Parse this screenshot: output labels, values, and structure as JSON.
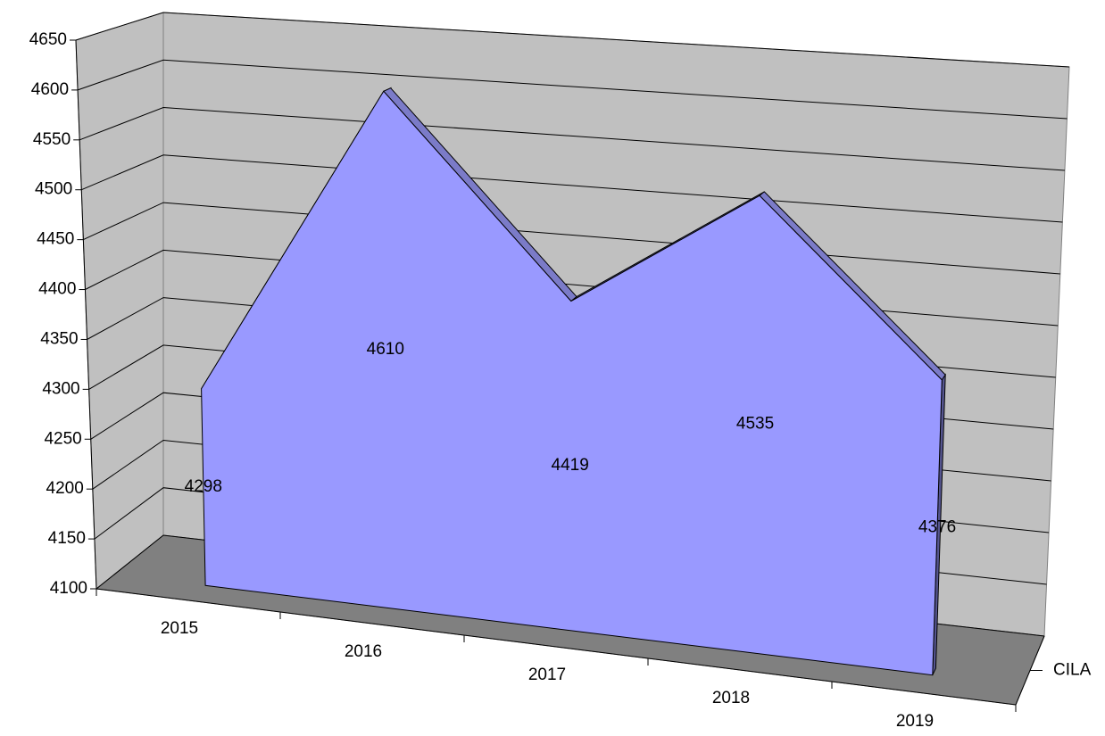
{
  "chart_data": {
    "type": "area3d",
    "categories": [
      "2015",
      "2016",
      "2017",
      "2018",
      "2019"
    ],
    "series": [
      {
        "name": "CILA",
        "color": "#9999ff",
        "values": [
          4298,
          4610,
          4419,
          4535,
          4376
        ]
      }
    ],
    "ylim": [
      4100,
      4650
    ],
    "yticks": [
      4100,
      4150,
      4200,
      4250,
      4300,
      4350,
      4400,
      4450,
      4500,
      4550,
      4600,
      4650
    ],
    "grid": true,
    "data_labels": true
  }
}
